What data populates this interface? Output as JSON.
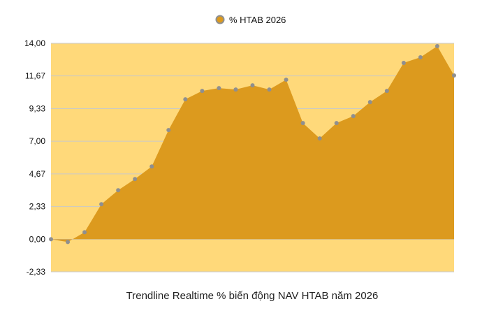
{
  "chart_data": {
    "type": "area",
    "title": "",
    "xlabel": "Trendline Realtime % biến động NAV HTAB năm 2026",
    "ylabel": "",
    "ylim": [
      -2.33,
      14.0
    ],
    "y_ticks": [
      "14,00",
      "11,67",
      "9,33",
      "7,00",
      "4,67",
      "2,33",
      "0,00",
      "-2,33"
    ],
    "y_tick_values": [
      14.0,
      11.67,
      9.33,
      7.0,
      4.67,
      2.33,
      0.0,
      -2.33
    ],
    "grid": true,
    "legend": "top-center",
    "series": [
      {
        "name": "% HTAB 2026",
        "values": [
          0.0,
          -0.2,
          0.5,
          2.5,
          3.5,
          4.3,
          5.2,
          7.8,
          10.0,
          10.6,
          10.8,
          10.7,
          11.0,
          10.7,
          11.4,
          8.3,
          7.2,
          8.3,
          8.8,
          9.8,
          10.6,
          12.6,
          13.0,
          13.8,
          11.7
        ],
        "color": "#dc9a1e"
      }
    ],
    "colors": {
      "plot_background": "#ffd97a",
      "area_fill": "#dc9a1e",
      "marker": "#8f8f8f",
      "gridline": "#c9c9c9"
    }
  }
}
